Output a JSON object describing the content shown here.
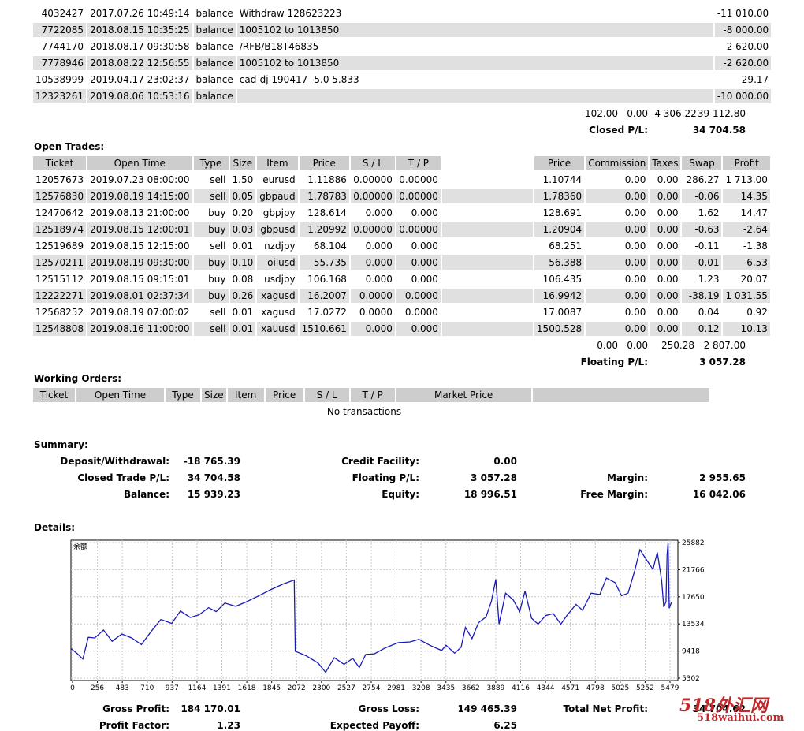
{
  "balance_rows": [
    {
      "ticket": "4032427",
      "time": "2017.07.26 10:49:14",
      "type": "balance",
      "item": "Withdraw 128623223",
      "profit": "-11 010.00"
    },
    {
      "ticket": "7722085",
      "time": "2018.08.15 10:35:25",
      "type": "balance",
      "item": "1005102 to 1013850",
      "profit": "-8 000.00"
    },
    {
      "ticket": "7744170",
      "time": "2018.08.17 09:30:58",
      "type": "balance",
      "item": "/RFB/B18T46835",
      "profit": "2 620.00"
    },
    {
      "ticket": "7778946",
      "time": "2018.08.22 12:56:55",
      "type": "balance",
      "item": "1005102 to 1013850",
      "profit": "-2 620.00"
    },
    {
      "ticket": "10538999",
      "time": "2019.04.17 23:02:37",
      "type": "balance",
      "item": "cad-dj 190417 -5.0 5.833",
      "profit": "-29.17"
    },
    {
      "ticket": "12323261",
      "time": "2019.08.06 10:53:16",
      "type": "balance",
      "item": "",
      "profit": "-10 000.00"
    }
  ],
  "closed_totals": {
    "commission": "-102.00",
    "taxes": "0.00",
    "swap": "-4 306.22",
    "profit": "39 112.80"
  },
  "closed_pl": {
    "label": "Closed P/L:",
    "value": "34 704.58"
  },
  "open_trades": {
    "title": "Open Trades:",
    "headers": [
      "Ticket",
      "Open Time",
      "Type",
      "Size",
      "Item",
      "Price",
      "S / L",
      "T / P",
      "",
      "Price",
      "Commission",
      "Taxes",
      "Swap",
      "Profit"
    ],
    "rows": [
      {
        "ticket": "12057673",
        "time": "2019.07.23 08:00:00",
        "type": "sell",
        "size": "1.50",
        "item": "eurusd",
        "price": "1.11886",
        "sl": "0.00000",
        "tp": "0.00000",
        "cprice": "1.10744",
        "comm": "0.00",
        "taxes": "0.00",
        "swap": "286.27",
        "profit": "1 713.00"
      },
      {
        "ticket": "12576830",
        "time": "2019.08.19 14:15:00",
        "type": "sell",
        "size": "0.05",
        "item": "gbpaud",
        "price": "1.78783",
        "sl": "0.00000",
        "tp": "0.00000",
        "cprice": "1.78360",
        "comm": "0.00",
        "taxes": "0.00",
        "swap": "-0.06",
        "profit": "14.35"
      },
      {
        "ticket": "12470642",
        "time": "2019.08.13 21:00:00",
        "type": "buy",
        "size": "0.20",
        "item": "gbpjpy",
        "price": "128.614",
        "sl": "0.000",
        "tp": "0.000",
        "cprice": "128.691",
        "comm": "0.00",
        "taxes": "0.00",
        "swap": "1.62",
        "profit": "14.47"
      },
      {
        "ticket": "12518974",
        "time": "2019.08.15 12:00:01",
        "type": "buy",
        "size": "0.03",
        "item": "gbpusd",
        "price": "1.20992",
        "sl": "0.00000",
        "tp": "0.00000",
        "cprice": "1.20904",
        "comm": "0.00",
        "taxes": "0.00",
        "swap": "-0.63",
        "profit": "-2.64"
      },
      {
        "ticket": "12519689",
        "time": "2019.08.15 12:15:00",
        "type": "sell",
        "size": "0.01",
        "item": "nzdjpy",
        "price": "68.104",
        "sl": "0.000",
        "tp": "0.000",
        "cprice": "68.251",
        "comm": "0.00",
        "taxes": "0.00",
        "swap": "-0.11",
        "profit": "-1.38"
      },
      {
        "ticket": "12570211",
        "time": "2019.08.19 09:30:00",
        "type": "buy",
        "size": "0.10",
        "item": "oilusd",
        "price": "55.735",
        "sl": "0.000",
        "tp": "0.000",
        "cprice": "56.388",
        "comm": "0.00",
        "taxes": "0.00",
        "swap": "-0.01",
        "profit": "6.53"
      },
      {
        "ticket": "12515112",
        "time": "2019.08.15 09:15:01",
        "type": "buy",
        "size": "0.08",
        "item": "usdjpy",
        "price": "106.168",
        "sl": "0.000",
        "tp": "0.000",
        "cprice": "106.435",
        "comm": "0.00",
        "taxes": "0.00",
        "swap": "1.23",
        "profit": "20.07"
      },
      {
        "ticket": "12222271",
        "time": "2019.08.01 02:37:34",
        "type": "buy",
        "size": "0.26",
        "item": "xagusd",
        "price": "16.2007",
        "sl": "0.0000",
        "tp": "0.0000",
        "cprice": "16.9942",
        "comm": "0.00",
        "taxes": "0.00",
        "swap": "-38.19",
        "profit": "1 031.55"
      },
      {
        "ticket": "12568252",
        "time": "2019.08.19 07:00:02",
        "type": "sell",
        "size": "0.01",
        "item": "xagusd",
        "price": "17.0272",
        "sl": "0.0000",
        "tp": "0.0000",
        "cprice": "17.0087",
        "comm": "0.00",
        "taxes": "0.00",
        "swap": "0.04",
        "profit": "0.92"
      },
      {
        "ticket": "12548808",
        "time": "2019.08.16 11:00:00",
        "type": "sell",
        "size": "0.01",
        "item": "xauusd",
        "price": "1510.661",
        "sl": "0.000",
        "tp": "0.000",
        "cprice": "1500.528",
        "comm": "0.00",
        "taxes": "0.00",
        "swap": "0.12",
        "profit": "10.13"
      }
    ],
    "totals": {
      "commission": "0.00",
      "taxes": "0.00",
      "swap": "250.28",
      "profit": "2 807.00"
    },
    "floating_label": "Floating P/L:",
    "floating_value": "3 057.28"
  },
  "working_orders": {
    "title": "Working Orders:",
    "headers": [
      "Ticket",
      "Open Time",
      "Type",
      "Size",
      "Item",
      "Price",
      "S / L",
      "T / P",
      "Market Price",
      ""
    ],
    "empty": "No transactions"
  },
  "summary": {
    "title": "Summary:",
    "deposit_label": "Deposit/Withdrawal:",
    "deposit_value": "-18 765.39",
    "credit_label": "Credit Facility:",
    "credit_value": "0.00",
    "closed_label": "Closed Trade P/L:",
    "closed_value": "34 704.58",
    "floating_label": "Floating P/L:",
    "floating_value": "3 057.28",
    "margin_label": "Margin:",
    "margin_value": "2 955.65",
    "balance_label": "Balance:",
    "balance_value": "15 939.23",
    "equity_label": "Equity:",
    "equity_value": "18 996.51",
    "free_margin_label": "Free Margin:",
    "free_margin_value": "16 042.06"
  },
  "details": {
    "title": "Details:"
  },
  "chart_data": {
    "type": "line",
    "title": "余额",
    "x_ticks": [
      "0",
      "256",
      "483",
      "710",
      "937",
      "1164",
      "1391",
      "1618",
      "1845",
      "2072",
      "2300",
      "2527",
      "2754",
      "2981",
      "3208",
      "3435",
      "3662",
      "3889",
      "4116",
      "4344",
      "4571",
      "4798",
      "5025",
      "5252",
      "5479"
    ],
    "y_ticks": [
      "25882",
      "21766",
      "17650",
      "13534",
      "9418",
      "5302"
    ],
    "ylim": [
      5302,
      25882
    ],
    "xlim": [
      0,
      5600
    ],
    "series": [
      {
        "color": "#1a1ab8",
        "points": [
          [
            0,
            9800
          ],
          [
            60,
            9000
          ],
          [
            110,
            8200
          ],
          [
            160,
            11500
          ],
          [
            220,
            11400
          ],
          [
            300,
            12600
          ],
          [
            380,
            10900
          ],
          [
            470,
            12000
          ],
          [
            560,
            11400
          ],
          [
            650,
            10400
          ],
          [
            740,
            12400
          ],
          [
            830,
            14200
          ],
          [
            930,
            13600
          ],
          [
            1010,
            15500
          ],
          [
            1100,
            14500
          ],
          [
            1180,
            14900
          ],
          [
            1270,
            16000
          ],
          [
            1340,
            15400
          ],
          [
            1420,
            16700
          ],
          [
            1520,
            16200
          ],
          [
            1620,
            16900
          ],
          [
            1720,
            17700
          ],
          [
            1840,
            18700
          ],
          [
            1960,
            19600
          ],
          [
            2060,
            20200
          ],
          [
            2070,
            9400
          ],
          [
            2170,
            8700
          ],
          [
            2280,
            7600
          ],
          [
            2350,
            6200
          ],
          [
            2430,
            8400
          ],
          [
            2520,
            7400
          ],
          [
            2600,
            8300
          ],
          [
            2660,
            6900
          ],
          [
            2720,
            8900
          ],
          [
            2800,
            9000
          ],
          [
            2900,
            9900
          ],
          [
            3020,
            10700
          ],
          [
            3130,
            10800
          ],
          [
            3210,
            11200
          ],
          [
            3310,
            10300
          ],
          [
            3420,
            9500
          ],
          [
            3460,
            10300
          ],
          [
            3540,
            9100
          ],
          [
            3600,
            10000
          ],
          [
            3640,
            13000
          ],
          [
            3700,
            11300
          ],
          [
            3760,
            13700
          ],
          [
            3830,
            14600
          ],
          [
            3880,
            17000
          ],
          [
            3920,
            20300
          ],
          [
            3950,
            13500
          ],
          [
            4010,
            18200
          ],
          [
            4080,
            17200
          ],
          [
            4140,
            15400
          ],
          [
            4190,
            18500
          ],
          [
            4250,
            14400
          ],
          [
            4310,
            13500
          ],
          [
            4380,
            14800
          ],
          [
            4450,
            15100
          ],
          [
            4520,
            13500
          ],
          [
            4580,
            14900
          ],
          [
            4660,
            16500
          ],
          [
            4720,
            15600
          ],
          [
            4800,
            18200
          ],
          [
            4880,
            18000
          ],
          [
            4940,
            20500
          ],
          [
            5020,
            19800
          ],
          [
            5080,
            17800
          ],
          [
            5140,
            18200
          ],
          [
            5200,
            21500
          ],
          [
            5250,
            24800
          ],
          [
            5300,
            23500
          ],
          [
            5370,
            21800
          ],
          [
            5410,
            24400
          ],
          [
            5450,
            20100
          ],
          [
            5470,
            16100
          ],
          [
            5490,
            16900
          ],
          [
            5500,
            24000
          ],
          [
            5510,
            25900
          ],
          [
            5520,
            15900
          ],
          [
            5540,
            16800
          ]
        ]
      }
    ]
  },
  "bottom_stats": {
    "gross_profit_label": "Gross Profit:",
    "gross_profit_value": "184 170.01",
    "gross_loss_label": "Gross Loss:",
    "gross_loss_value": "149 465.39",
    "total_net_label": "Total Net Profit:",
    "total_net_value": "34 704.62",
    "profit_factor_label": "Profit Factor:",
    "profit_factor_value": "1.23",
    "expected_payoff_label": "Expected Payoff:",
    "expected_payoff_value": "6.25"
  },
  "watermark": {
    "main": "518外汇网",
    "sub": "518waihui.com"
  }
}
